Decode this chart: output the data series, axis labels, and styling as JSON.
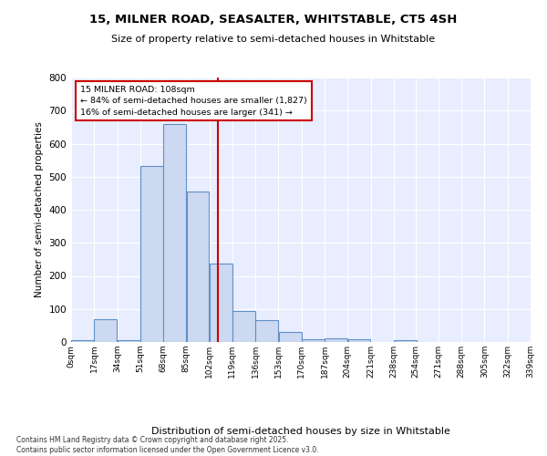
{
  "title1": "15, MILNER ROAD, SEASALTER, WHITSTABLE, CT5 4SH",
  "title2": "Size of property relative to semi-detached houses in Whitstable",
  "xlabel": "Distribution of semi-detached houses by size in Whitstable",
  "ylabel": "Number of semi-detached properties",
  "bin_labels": [
    "0sqm",
    "17sqm",
    "34sqm",
    "51sqm",
    "68sqm",
    "85sqm",
    "102sqm",
    "119sqm",
    "136sqm",
    "153sqm",
    "170sqm",
    "187sqm",
    "204sqm",
    "221sqm",
    "238sqm",
    "254sqm",
    "271sqm",
    "288sqm",
    "305sqm",
    "322sqm",
    "339sqm"
  ],
  "bin_edges": [
    0,
    17,
    34,
    51,
    68,
    85,
    102,
    119,
    136,
    153,
    170,
    187,
    204,
    221,
    238,
    254,
    271,
    288,
    305,
    322,
    339
  ],
  "bar_heights": [
    5,
    70,
    5,
    533,
    660,
    455,
    238,
    93,
    67,
    30,
    8,
    10,
    8,
    0,
    5,
    0,
    0,
    0,
    0,
    0
  ],
  "bar_color": "#ccd9f0",
  "bar_edge_color": "#6090c8",
  "property_size": 108,
  "red_line_color": "#cc0000",
  "annotation_box_edge_color": "#cc0000",
  "annotation_line1": "15 MILNER ROAD: 108sqm",
  "annotation_line2": "← 84% of semi-detached houses are smaller (1,827)",
  "annotation_line3": "16% of semi-detached houses are larger (341) →",
  "ylim": [
    0,
    800
  ],
  "yticks": [
    0,
    100,
    200,
    300,
    400,
    500,
    600,
    700,
    800
  ],
  "bg_color": "#e8eeff",
  "grid_color": "#ffffff",
  "footer1": "Contains HM Land Registry data © Crown copyright and database right 2025.",
  "footer2": "Contains public sector information licensed under the Open Government Licence v3.0."
}
